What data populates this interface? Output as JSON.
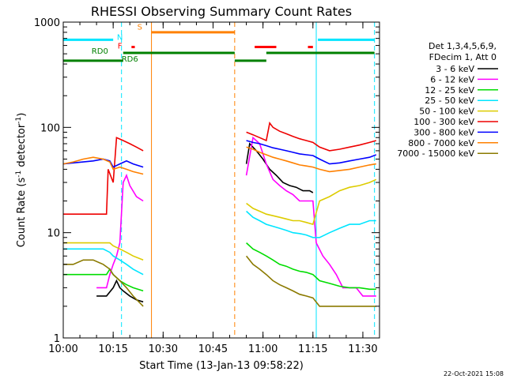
{
  "chart_data": {
    "type": "line",
    "title": "RHESSI Observing Summary Count Rates",
    "xlabel": "Start Time (13-Jan-13 09:58:22)",
    "ylabel_main": "Count Rate (s",
    "ylabel_sup1": "-1",
    "ylabel_mid": " detector",
    "ylabel_sup2": "-1",
    "ylabel_end": ")",
    "yscale": "log",
    "ylim": [
      1,
      1000
    ],
    "xlim_minutes": [
      0,
      95
    ],
    "x_ticks": [
      {
        "label": "10:00",
        "min": 0
      },
      {
        "label": "10:15",
        "min": 15
      },
      {
        "label": "10:30",
        "min": 30
      },
      {
        "label": "10:45",
        "min": 45
      },
      {
        "label": "11:00",
        "min": 60
      },
      {
        "label": "11:15",
        "min": 75
      },
      {
        "label": "11:30",
        "min": 90
      }
    ],
    "y_ticks": [
      {
        "label": "1",
        "v": 1
      },
      {
        "label": "10",
        "v": 10
      },
      {
        "label": "100",
        "v": 100
      },
      {
        "label": "1000",
        "v": 1000
      }
    ],
    "legend_header": [
      "Det 1,3,4,5,6,9,",
      "FDecim 1, Att 0"
    ],
    "legend_placement": "right",
    "series": [
      {
        "name": "3 - 6 keV",
        "color": "#000000",
        "x": [
          10,
          13,
          15,
          16,
          17,
          18,
          20,
          22,
          24,
          55,
          56,
          58,
          60,
          62,
          64,
          66,
          68,
          70,
          72,
          74,
          75
        ],
        "y": [
          2.5,
          2.5,
          3,
          3.5,
          3,
          2.8,
          2.5,
          2.3,
          2.2,
          45,
          70,
          60,
          50,
          40,
          35,
          30,
          28,
          27,
          25,
          25,
          24
        ]
      },
      {
        "name": "6 - 12 keV",
        "color": "#ff00ff",
        "x": [
          10,
          13,
          14,
          15,
          16,
          17,
          18,
          19,
          20,
          22,
          24,
          55,
          57,
          59,
          61,
          63,
          65,
          67,
          69,
          71,
          73,
          75,
          76,
          78,
          80,
          82,
          84,
          86,
          88,
          90,
          92,
          94
        ],
        "y": [
          3,
          3,
          4,
          5,
          6,
          8,
          30,
          35,
          28,
          22,
          20,
          35,
          80,
          70,
          45,
          32,
          28,
          25,
          23,
          20,
          20,
          20,
          8,
          6,
          5,
          4,
          3,
          3,
          3,
          2.5,
          2.5,
          2.5
        ]
      },
      {
        "name": "12 - 25 keV",
        "color": "#00dd00",
        "x": [
          0,
          5,
          10,
          13,
          14,
          15,
          17,
          19,
          21,
          24,
          55,
          57,
          59,
          61,
          63,
          65,
          67,
          69,
          71,
          73,
          75,
          77,
          80,
          83,
          86,
          89,
          92,
          94
        ],
        "y": [
          4,
          4,
          4,
          4,
          4.5,
          4,
          3.5,
          3.2,
          3,
          2.8,
          8,
          7,
          6.5,
          6,
          5.5,
          5,
          4.8,
          4.5,
          4.3,
          4.2,
          4,
          3.5,
          3.3,
          3.1,
          3,
          3,
          2.9,
          2.9
        ]
      },
      {
        "name": "25 - 50 keV",
        "color": "#00e5ff",
        "x": [
          0,
          5,
          10,
          12,
          14,
          15,
          17,
          19,
          21,
          24,
          55,
          57,
          59,
          61,
          63,
          65,
          67,
          69,
          71,
          73,
          75,
          77,
          80,
          83,
          86,
          89,
          92,
          94
        ],
        "y": [
          7,
          7,
          7,
          7,
          6.5,
          6,
          5.5,
          5,
          4.5,
          4,
          16,
          14,
          13,
          12,
          11.5,
          11,
          10.5,
          10,
          9.8,
          9.5,
          9,
          9,
          10,
          11,
          12,
          12,
          13,
          13
        ]
      },
      {
        "name": "50 - 100 keV",
        "color": "#ddcc00",
        "x": [
          0,
          5,
          10,
          12,
          14,
          15,
          17,
          19,
          21,
          24,
          55,
          57,
          59,
          61,
          63,
          65,
          67,
          69,
          71,
          73,
          75,
          77,
          80,
          83,
          86,
          89,
          92,
          94
        ],
        "y": [
          8,
          8,
          8,
          8,
          8,
          7.5,
          7,
          6.5,
          6,
          5.5,
          19,
          17,
          16,
          15,
          14.5,
          14,
          13.5,
          13,
          13,
          12.5,
          12,
          20,
          22,
          25,
          27,
          28,
          30,
          32
        ]
      },
      {
        "name": "100 - 300 keV",
        "color": "#ee0000",
        "x": [
          0,
          5,
          10,
          13,
          13.5,
          15,
          16,
          18,
          20,
          22,
          24,
          55,
          57,
          59,
          61,
          62,
          63,
          65,
          67,
          69,
          71,
          73,
          75,
          77,
          80,
          83,
          86,
          89,
          92,
          94
        ],
        "y": [
          15,
          15,
          15,
          15,
          40,
          30,
          80,
          75,
          70,
          65,
          60,
          90,
          85,
          80,
          75,
          110,
          100,
          92,
          87,
          82,
          78,
          75,
          72,
          65,
          60,
          62,
          65,
          68,
          72,
          75
        ]
      },
      {
        "name": "300 - 800 keV",
        "color": "#0000ff",
        "x": [
          0,
          3,
          6,
          9,
          12,
          14,
          15,
          17,
          19,
          21,
          24,
          55,
          57,
          59,
          61,
          63,
          65,
          67,
          69,
          71,
          73,
          75,
          77,
          80,
          83,
          86,
          89,
          92,
          94
        ],
        "y": [
          45,
          46,
          47,
          48,
          50,
          48,
          42,
          45,
          48,
          45,
          42,
          75,
          72,
          70,
          67,
          64,
          62,
          60,
          58,
          56,
          55,
          54,
          50,
          45,
          46,
          48,
          50,
          52,
          55
        ]
      },
      {
        "name": "800 - 7000 keV",
        "color": "#ff8000",
        "x": [
          0,
          3,
          6,
          9,
          12,
          14,
          15,
          17,
          19,
          21,
          24,
          55,
          57,
          59,
          61,
          63,
          65,
          67,
          69,
          71,
          73,
          75,
          77,
          80,
          83,
          86,
          89,
          92,
          94
        ],
        "y": [
          45,
          47,
          50,
          52,
          50,
          47,
          40,
          42,
          40,
          38,
          36,
          65,
          62,
          58,
          55,
          52,
          50,
          48,
          46,
          44,
          43,
          42,
          40,
          38,
          39,
          40,
          42,
          44,
          45
        ]
      },
      {
        "name": "7000 - 15000 keV",
        "color": "#8b7a00",
        "x": [
          0,
          3,
          6,
          9,
          12,
          14,
          15,
          17,
          19,
          21,
          24,
          55,
          57,
          59,
          61,
          63,
          65,
          67,
          69,
          71,
          73,
          75,
          77,
          80,
          83,
          86,
          89,
          92,
          94
        ],
        "y": [
          5,
          5,
          5.5,
          5.5,
          5,
          4.5,
          4,
          3.5,
          3,
          2.5,
          2,
          6,
          5,
          4.5,
          4,
          3.5,
          3.2,
          3,
          2.8,
          2.6,
          2.5,
          2.4,
          2,
          2,
          2,
          2,
          2,
          2,
          2
        ]
      }
    ],
    "annotations": [
      {
        "label": "N",
        "color": "#00e5ff",
        "x_min": 17,
        "v": 680
      },
      {
        "label": "F",
        "color": "#ff0000",
        "x_min": 17,
        "v": 560
      },
      {
        "label": "S",
        "color": "#ff8000",
        "x_min": 23,
        "v": 850
      },
      {
        "label": "RD0",
        "color": "#008000",
        "x_min": 11,
        "v": 500
      },
      {
        "label": "RD6",
        "color": "#008000",
        "x_min": 20,
        "v": 420
      }
    ],
    "state_bars": [
      {
        "color": "#00e5ff",
        "v": 680,
        "x0": 0,
        "x1": 15
      },
      {
        "color": "#00e5ff",
        "v": 680,
        "x0": 76.5,
        "x1": 93.5
      },
      {
        "color": "#ff8000",
        "v": 800,
        "x0": 26.5,
        "x1": 51.5
      },
      {
        "color": "#008000",
        "v": 510,
        "x0": 18,
        "x1": 51.5
      },
      {
        "color": "#008000",
        "v": 510,
        "x0": 61,
        "x1": 93.5
      },
      {
        "color": "#008000",
        "v": 430,
        "x0": 0,
        "x1": 18
      },
      {
        "color": "#008000",
        "v": 430,
        "x0": 51.5,
        "x1": 61
      },
      {
        "color": "#ff0000",
        "v": 580,
        "x0": 20.5,
        "x1": 21.5
      },
      {
        "color": "#ff0000",
        "v": 580,
        "x0": 57.5,
        "x1": 64
      },
      {
        "color": "#ff0000",
        "v": 580,
        "x0": 73.5,
        "x1": 75
      }
    ],
    "vlines": [
      {
        "color": "#00e5ff",
        "dashed": true,
        "x_min": 17.5
      },
      {
        "color": "#ff8000",
        "dashed": false,
        "x_min": 26.5
      },
      {
        "color": "#ff8000",
        "dashed": true,
        "x_min": 51.5
      },
      {
        "color": "#00e5ff",
        "dashed": false,
        "x_min": 76
      },
      {
        "color": "#00e5ff",
        "dashed": true,
        "x_min": 93.5
      }
    ],
    "footer_date": "22-Oct-2021 15:08"
  }
}
